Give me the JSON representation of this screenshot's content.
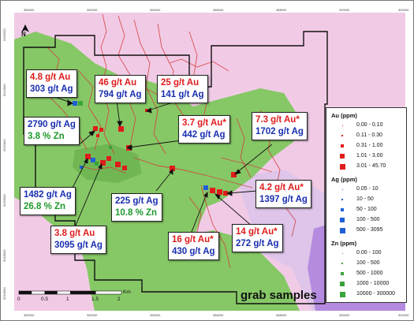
{
  "map": {
    "title": "grab samples",
    "north_label": "N",
    "scale_bar": {
      "labels": [
        "0",
        "0.5",
        "1",
        "1.5",
        "2"
      ],
      "unit": "Km"
    },
    "colors": {
      "background": "#f1cbe6",
      "green_unit": "#7fc55e",
      "purple_unit": "#b58be0",
      "lavender_unit": "#cfc4e6",
      "drainage": "#d43a3a",
      "boundary": "#111111"
    },
    "coords_top": [
      "380000",
      "382000",
      "384000",
      "386000",
      "388000",
      "390000",
      "392000"
    ],
    "coords_bottom": [
      "380000",
      "382000",
      "384000",
      "386000",
      "388000",
      "390000",
      "392000"
    ],
    "coords_side": [
      "5026000",
      "5024000",
      "5022000",
      "5020000",
      "5018000",
      "5016000"
    ]
  },
  "callouts": [
    {
      "id": "c1",
      "lines": [
        {
          "text": "4.8 g/t Au",
          "color": "red"
        },
        {
          "text": "303 g/t Ag",
          "color": "blue"
        }
      ]
    },
    {
      "id": "c2",
      "lines": [
        {
          "text": "46 g/t Au",
          "color": "red"
        },
        {
          "text": "794 g/t Ag",
          "color": "blue"
        }
      ]
    },
    {
      "id": "c3",
      "lines": [
        {
          "text": "25 g/t Au",
          "color": "red"
        },
        {
          "text": "141 g/t Ag",
          "color": "blue"
        }
      ]
    },
    {
      "id": "c4",
      "lines": [
        {
          "text": "2790 g/t Ag",
          "color": "blue"
        },
        {
          "text": "3.8 % Zn",
          "color": "green"
        }
      ]
    },
    {
      "id": "c5",
      "lines": [
        {
          "text": "3.7 g/t Au*",
          "color": "red"
        },
        {
          "text": "442 g/t Ag",
          "color": "blue"
        }
      ]
    },
    {
      "id": "c6",
      "lines": [
        {
          "text": "7.3 g/t Au*",
          "color": "red"
        },
        {
          "text": "1702 g/t Ag",
          "color": "blue"
        }
      ]
    },
    {
      "id": "c7",
      "lines": [
        {
          "text": "1482 g/t Ag",
          "color": "blue"
        },
        {
          "text": "26.8 % Zn",
          "color": "green"
        }
      ]
    },
    {
      "id": "c8",
      "lines": [
        {
          "text": "225 g/t Ag",
          "color": "blue"
        },
        {
          "text": "10.8 % Zn",
          "color": "green"
        }
      ]
    },
    {
      "id": "c9",
      "lines": [
        {
          "text": "4.2 g/t Au*",
          "color": "red"
        },
        {
          "text": "1397 g/t Ag",
          "color": "blue"
        }
      ]
    },
    {
      "id": "c10",
      "lines": [
        {
          "text": "3.8 g/t Au",
          "color": "red"
        },
        {
          "text": "3095 g/t Ag",
          "color": "blue"
        }
      ]
    },
    {
      "id": "c11",
      "lines": [
        {
          "text": "16 g/t Au*",
          "color": "red"
        },
        {
          "text": "430 g/t Ag",
          "color": "blue"
        }
      ]
    },
    {
      "id": "c12",
      "lines": [
        {
          "text": "14 g/t Au*",
          "color": "red"
        },
        {
          "text": "272 g/t Ag",
          "color": "blue"
        }
      ]
    }
  ],
  "legend": {
    "groups": [
      {
        "title": "Au (ppm)",
        "color": "#e01b1b",
        "shape": "square",
        "items": [
          {
            "label": "0.00 - 0.10",
            "size": 1
          },
          {
            "label": "0.11 - 0.30",
            "size": 2
          },
          {
            "label": "0.31 - 1.00",
            "size": 4
          },
          {
            "label": "1.01 - 3.00",
            "size": 5.5
          },
          {
            "label": "3.01 - 45.70",
            "size": 7
          }
        ]
      },
      {
        "title": "Ag (ppm)",
        "color": "#1f5fd6",
        "shape": "square",
        "items": [
          {
            "label": "0.05 - 10",
            "size": 1
          },
          {
            "label": "10 - 50",
            "size": 2.5
          },
          {
            "label": "50 - 100",
            "size": 4
          },
          {
            "label": "100 - 500",
            "size": 5.5
          },
          {
            "label": "500 - 3095",
            "size": 7
          }
        ]
      },
      {
        "title": "Zn (ppm)",
        "color": "#3aa33a",
        "shape": "square",
        "items": [
          {
            "label": "0.00 - 100",
            "size": 1
          },
          {
            "label": "100 - 500",
            "size": 2.5
          },
          {
            "label": "500 - 1000",
            "size": 4
          },
          {
            "label": "1000 - 10000",
            "size": 5.5
          },
          {
            "label": "10000 - 300000",
            "size": 7
          }
        ]
      }
    ]
  }
}
